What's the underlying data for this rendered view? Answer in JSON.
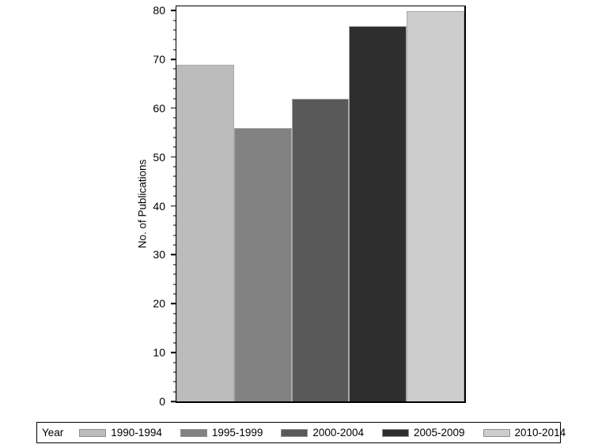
{
  "chart_data": {
    "type": "bar",
    "title": "",
    "xlabel": "",
    "ylabel": "No. of Publications",
    "categories": [
      "1990-1994",
      "1995-1999",
      "2000-2004",
      "2005-2009",
      "2010-2014"
    ],
    "values": [
      69,
      56,
      62,
      77,
      80
    ],
    "bar_colors": [
      "#bcbcbc",
      "#828282",
      "#595959",
      "#2e2e2e",
      "#cdcdcd"
    ],
    "bar_outline_color": "#a9a9a9",
    "ylim": [
      0,
      81
    ],
    "ytick_labels": [
      "0",
      "10",
      "20",
      "30",
      "40",
      "50",
      "60",
      "70",
      "80"
    ],
    "ytick_step": 10,
    "minor_tick_step": 2,
    "grid": "off",
    "legend": {
      "title": "Year",
      "position": "bottom",
      "entries": [
        {
          "label": "1990-1994",
          "color": "#bcbcbc"
        },
        {
          "label": "1995-1999",
          "color": "#828282"
        },
        {
          "label": "2000-2004",
          "color": "#595959"
        },
        {
          "label": "2005-2009",
          "color": "#2e2e2e"
        },
        {
          "label": "2010-2014",
          "color": "#cdcdcd"
        }
      ]
    }
  }
}
